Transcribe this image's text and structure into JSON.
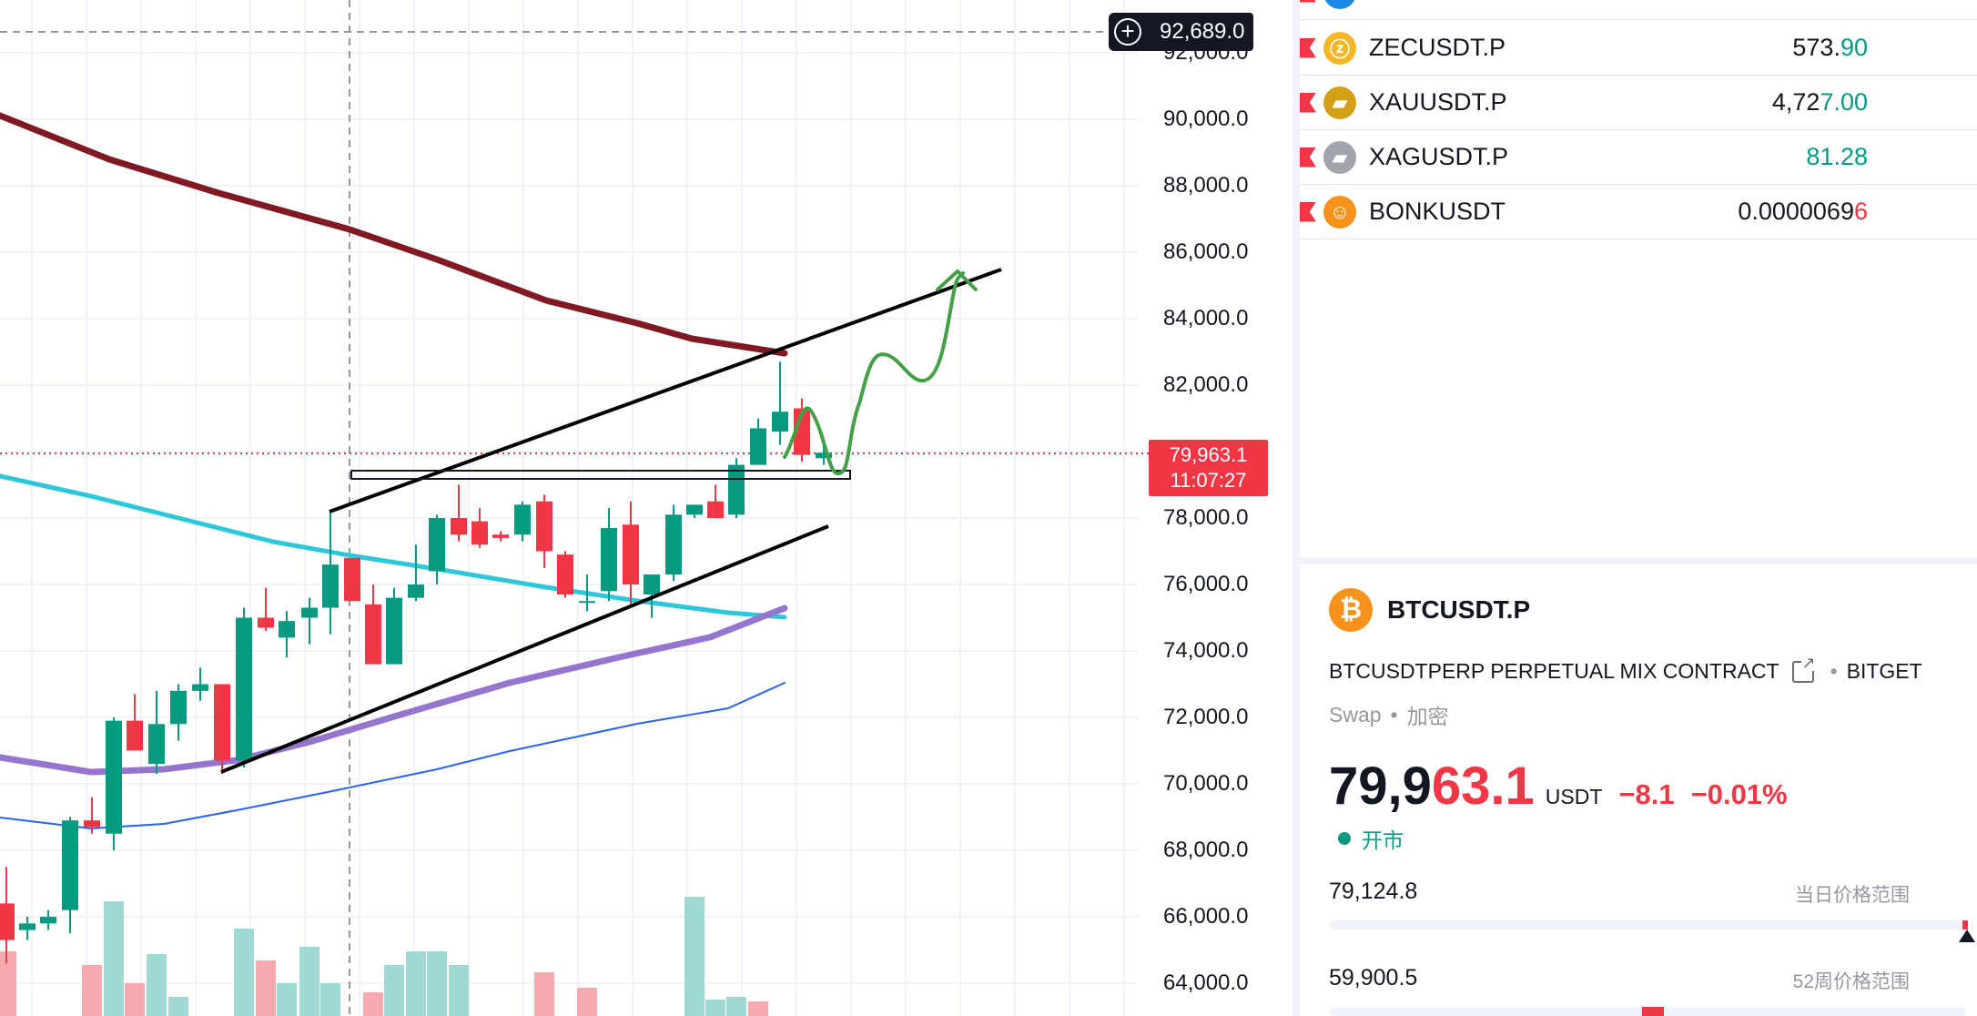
{
  "chart": {
    "price_axis": [
      "92,000.0",
      "90,000.0",
      "88,000.0",
      "86,000.0",
      "84,000.0",
      "82,000.0",
      "78,000.0",
      "76,000.0",
      "74,000.0",
      "72,000.0",
      "70,000.0",
      "68,000.0",
      "66,000.0",
      "64,000.0"
    ],
    "crosshair_price": "92,689.0",
    "last_price": "79,963.1",
    "countdown": "11:07:27",
    "colors": {
      "up": "#089981",
      "down": "#f23645",
      "ma_dark": "#801922",
      "ma_cyan": "#2ec7d9",
      "ma_purple": "#9575cd",
      "ma_blue": "#2962ff",
      "hand_drawn": "#43a047"
    }
  },
  "watchlist": {
    "items": [
      {
        "symbol": "ZECUSDT.P",
        "price_main": "573.",
        "price_tail": "90",
        "tail_color": "green",
        "icon": "zcash-icon",
        "icon_color": "#f4b728",
        "glyph": "ⓩ"
      },
      {
        "symbol": "XAUUSDT.P",
        "price_main": "4,72",
        "price_tail": "7.00",
        "tail_color": "green",
        "icon": "gold-icon",
        "icon_color": "#d4a017",
        "glyph": "▰"
      },
      {
        "symbol": "XAGUSDT.P",
        "price_main": "",
        "price_tail": "81.28",
        "tail_color": "green",
        "icon": "silver-icon",
        "icon_color": "#a0a4ab",
        "glyph": "▰"
      },
      {
        "symbol": "BONKUSDT",
        "price_main": "0.0000069",
        "price_tail": "6",
        "tail_color": "red",
        "icon": "bonk-icon",
        "icon_color": "#f7931a",
        "glyph": "☺"
      }
    ]
  },
  "detail": {
    "logo": "₿",
    "symbol": "BTCUSDT.P",
    "description": "BTCUSDTPERP PERPETUAL MIX CONTRACT",
    "exchange": "BITGET",
    "type": "Swap",
    "category": "加密",
    "price_main": "79,9",
    "price_tail": "63.1",
    "currency": "USDT",
    "change": "−8.1",
    "change_pct": "−0.01%",
    "market_status": "开市",
    "day_range_value": "79,124.8",
    "day_range_label": "当日价格范围",
    "week52_value": "59,900.5",
    "week52_label": "52周价格范围"
  }
}
